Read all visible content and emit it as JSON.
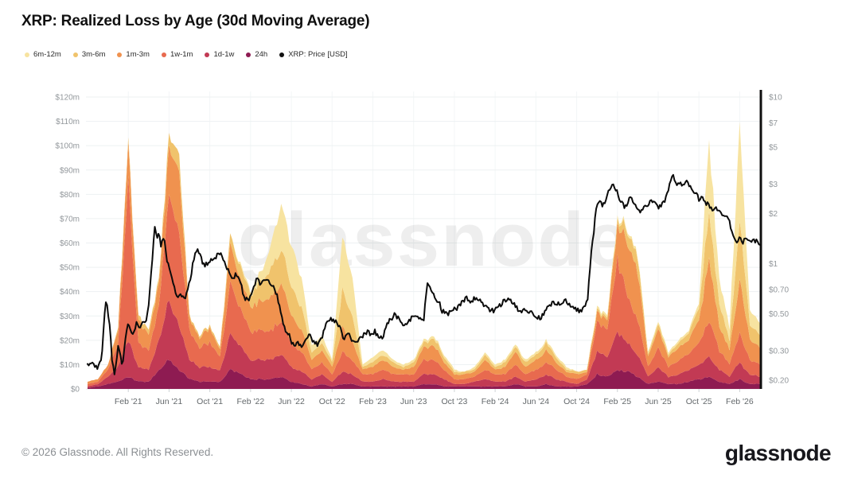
{
  "header": {
    "title": "XRP: Realized Loss by Age (30d Moving Average)"
  },
  "legend": {
    "items": [
      {
        "label": "6m-12m",
        "color": "#f7e3a0"
      },
      {
        "label": "3m-6m",
        "color": "#f0c36c"
      },
      {
        "label": "1m-3m",
        "color": "#f0924f"
      },
      {
        "label": "1w-1m",
        "color": "#e86a4f"
      },
      {
        "label": "1d-1w",
        "color": "#c23a54"
      },
      {
        "label": "24h",
        "color": "#8e1b52"
      },
      {
        "label": "XRP: Price [USD]",
        "color": "#111111"
      }
    ]
  },
  "watermark": {
    "text": "glassnode"
  },
  "footer": {
    "copyright": "© 2026 Glassnode. All Rights Reserved.",
    "brand": "glassnode"
  },
  "chart_data": {
    "type": "area",
    "subtype": "stacked-area-with-log-price-line",
    "title": "XRP: Realized Loss by Age (30d Moving Average)",
    "x_start": "2020-10",
    "x_step_months": 1,
    "x_ticks": [
      {
        "i": 4,
        "label": "Feb '21"
      },
      {
        "i": 8,
        "label": "Jun '21"
      },
      {
        "i": 12,
        "label": "Oct '21"
      },
      {
        "i": 16,
        "label": "Feb '22"
      },
      {
        "i": 20,
        "label": "Jun '22"
      },
      {
        "i": 24,
        "label": "Oct '22"
      },
      {
        "i": 28,
        "label": "Feb '23"
      },
      {
        "i": 32,
        "label": "Jun '23"
      },
      {
        "i": 36,
        "label": "Oct '23"
      },
      {
        "i": 40,
        "label": "Feb '24"
      },
      {
        "i": 44,
        "label": "Jun '24"
      },
      {
        "i": 48,
        "label": "Oct '24"
      },
      {
        "i": 52,
        "label": "Feb '25"
      },
      {
        "i": 56,
        "label": "Jun '25"
      },
      {
        "i": 60,
        "label": "Oct '25"
      },
      {
        "i": 64,
        "label": "Feb '26"
      }
    ],
    "left_axis": {
      "unit": "USD millions",
      "range": [
        0,
        120
      ],
      "ticks": [
        {
          "v": 0,
          "label": "$0"
        },
        {
          "v": 10,
          "label": "$10m"
        },
        {
          "v": 20,
          "label": "$20m"
        },
        {
          "v": 30,
          "label": "$30m"
        },
        {
          "v": 40,
          "label": "$40m"
        },
        {
          "v": 50,
          "label": "$50m"
        },
        {
          "v": 60,
          "label": "$60m"
        },
        {
          "v": 70,
          "label": "$70m"
        },
        {
          "v": 80,
          "label": "$80m"
        },
        {
          "v": 90,
          "label": "$90m"
        },
        {
          "v": 100,
          "label": "$100m"
        },
        {
          "v": 110,
          "label": "$110m"
        },
        {
          "v": 120,
          "label": "$120m"
        }
      ]
    },
    "right_axis": {
      "unit": "USD",
      "scale": "log",
      "range": [
        0.2,
        10
      ],
      "ticks": [
        {
          "v": 10,
          "label": "$10"
        },
        {
          "v": 7,
          "label": "$7"
        },
        {
          "v": 5,
          "label": "$5"
        },
        {
          "v": 3,
          "label": "$3"
        },
        {
          "v": 2,
          "label": "$2"
        },
        {
          "v": 1,
          "label": "$1"
        },
        {
          "v": 0.7,
          "label": "$0.70"
        },
        {
          "v": 0.5,
          "label": "$0.50"
        },
        {
          "v": 0.3,
          "label": "$0.30"
        },
        {
          "v": 0.2,
          "label": "$0.20"
        }
      ]
    },
    "stack_order": "bottom-to-top",
    "series": [
      {
        "name": "24h",
        "color": "#8e1b52",
        "values": [
          0.5,
          1,
          2,
          3,
          5,
          3,
          3,
          8,
          12,
          8,
          4,
          3,
          3,
          3,
          8,
          6,
          4,
          4,
          4,
          5,
          3,
          2,
          1,
          2,
          1,
          2,
          2,
          1,
          1,
          1,
          1,
          1,
          1,
          2,
          2,
          1,
          1,
          1,
          1,
          1,
          1,
          1,
          2,
          1,
          1,
          2,
          1,
          1,
          1,
          2,
          6,
          5,
          8,
          7,
          5,
          2,
          3,
          2,
          2,
          3,
          4,
          5,
          3,
          2,
          4,
          2,
          2
        ]
      },
      {
        "name": "1d-1w",
        "color": "#c23a54",
        "values": [
          0.5,
          1,
          3,
          6,
          15,
          6,
          5,
          12,
          25,
          18,
          8,
          6,
          6,
          5,
          14,
          12,
          8,
          8,
          8,
          9,
          6,
          5,
          3,
          4,
          2,
          5,
          4,
          2,
          2,
          3,
          2,
          2,
          2,
          4,
          4,
          3,
          1,
          1,
          2,
          3,
          2,
          2,
          3,
          2,
          3,
          4,
          3,
          2,
          1,
          2,
          9,
          8,
          15,
          12,
          9,
          3,
          6,
          3,
          4,
          5,
          6,
          8,
          5,
          3,
          7,
          4,
          3
        ]
      },
      {
        "name": "1w-1m",
        "color": "#e86a4f",
        "values": [
          1,
          1,
          3,
          9,
          65,
          10,
          8,
          14,
          45,
          38,
          12,
          8,
          10,
          6,
          20,
          16,
          12,
          12,
          12,
          14,
          10,
          8,
          4,
          5,
          3,
          8,
          6,
          3,
          3,
          4,
          3,
          3,
          3,
          6,
          6,
          4,
          2,
          2,
          2,
          4,
          3,
          3,
          5,
          3,
          4,
          5,
          4,
          2,
          2,
          2,
          12,
          11,
          30,
          20,
          14,
          4,
          8,
          4,
          6,
          7,
          9,
          15,
          8,
          5,
          12,
          6,
          5
        ]
      },
      {
        "name": "1m-3m",
        "color": "#f0924f",
        "values": [
          1,
          1,
          2,
          6,
          15,
          9,
          7,
          9,
          20,
          24,
          5,
          4,
          6,
          3,
          16,
          12,
          10,
          12,
          14,
          16,
          12,
          9,
          4,
          5,
          3,
          10,
          8,
          2,
          3,
          4,
          3,
          2,
          3,
          5,
          6,
          3,
          2,
          2,
          2,
          4,
          2,
          3,
          5,
          3,
          4,
          5,
          3,
          2,
          2,
          1,
          4,
          4,
          14,
          22,
          20,
          4,
          8,
          4,
          5,
          6,
          9,
          25,
          10,
          6,
          22,
          8,
          7
        ]
      },
      {
        "name": "3m-6m",
        "color": "#f0c36c",
        "values": [
          0,
          0,
          0,
          1,
          2,
          2,
          2,
          2,
          5,
          7,
          1,
          1,
          1,
          1,
          4,
          5,
          5,
          8,
          12,
          14,
          12,
          9,
          3,
          3,
          2,
          15,
          10,
          1,
          2,
          2,
          2,
          1,
          2,
          2,
          3,
          2,
          1,
          1,
          1,
          2,
          1,
          2,
          2,
          2,
          2,
          3,
          2,
          1,
          1,
          1,
          1,
          1,
          2,
          5,
          6,
          1,
          2,
          1,
          2,
          3,
          5,
          20,
          9,
          4,
          25,
          6,
          5
        ]
      },
      {
        "name": "6m-12m",
        "color": "#f7e3a0",
        "values": [
          0,
          0,
          0,
          0,
          0,
          0,
          0,
          0,
          0,
          0,
          0,
          0,
          0,
          0,
          0,
          1,
          1,
          4,
          10,
          18,
          17,
          12,
          3,
          3,
          1,
          22,
          15,
          1,
          2,
          2,
          1,
          1,
          1,
          1,
          1,
          1,
          1,
          0,
          1,
          1,
          1,
          1,
          1,
          1,
          1,
          1,
          1,
          1,
          0,
          0,
          1,
          1,
          1,
          1,
          1,
          1,
          1,
          1,
          1,
          1,
          2,
          30,
          10,
          5,
          40,
          6,
          5
        ]
      }
    ],
    "price_line": {
      "name": "XRP: Price [USD]",
      "color": "#0b0b0b",
      "points": [
        [
          0,
          0.245
        ],
        [
          0.5,
          0.25
        ],
        [
          1,
          0.24
        ],
        [
          1.4,
          0.27
        ],
        [
          1.8,
          0.6
        ],
        [
          2,
          0.52
        ],
        [
          2.4,
          0.27
        ],
        [
          2.7,
          0.21
        ],
        [
          3,
          0.33
        ],
        [
          3.4,
          0.24
        ],
        [
          3.7,
          0.35
        ],
        [
          4,
          0.46
        ],
        [
          4.2,
          0.4
        ],
        [
          4.5,
          0.37
        ],
        [
          4.8,
          0.44
        ],
        [
          5.1,
          0.4
        ],
        [
          5.4,
          0.45
        ],
        [
          5.7,
          0.44
        ],
        [
          6,
          0.56
        ],
        [
          6.3,
          0.95
        ],
        [
          6.6,
          1.62
        ],
        [
          6.8,
          1.4
        ],
        [
          7,
          1.58
        ],
        [
          7.2,
          1.3
        ],
        [
          7.5,
          1.42
        ],
        [
          7.8,
          1.05
        ],
        [
          8,
          0.92
        ],
        [
          8.3,
          0.8
        ],
        [
          8.6,
          0.7
        ],
        [
          8.9,
          0.62
        ],
        [
          9.2,
          0.66
        ],
        [
          9.5,
          0.6
        ],
        [
          9.8,
          0.7
        ],
        [
          10.1,
          0.8
        ],
        [
          10.4,
          1.05
        ],
        [
          10.7,
          1.22
        ],
        [
          11,
          1.12
        ],
        [
          11.4,
          0.98
        ],
        [
          11.8,
          1.02
        ],
        [
          12.2,
          1.08
        ],
        [
          12.6,
          1.1
        ],
        [
          13,
          1.18
        ],
        [
          13.4,
          1.02
        ],
        [
          13.8,
          0.92
        ],
        [
          14.2,
          0.82
        ],
        [
          14.6,
          0.86
        ],
        [
          15,
          0.76
        ],
        [
          15.4,
          0.63
        ],
        [
          15.8,
          0.6
        ],
        [
          16.2,
          0.7
        ],
        [
          16.6,
          0.8
        ],
        [
          17,
          0.76
        ],
        [
          17.4,
          0.82
        ],
        [
          17.8,
          0.77
        ],
        [
          18.2,
          0.73
        ],
        [
          18.6,
          0.64
        ],
        [
          19,
          0.5
        ],
        [
          19.4,
          0.4
        ],
        [
          19.8,
          0.37
        ],
        [
          20.2,
          0.32
        ],
        [
          20.6,
          0.34
        ],
        [
          21,
          0.32
        ],
        [
          21.4,
          0.36
        ],
        [
          21.8,
          0.37
        ],
        [
          22.2,
          0.34
        ],
        [
          22.6,
          0.33
        ],
        [
          23,
          0.35
        ],
        [
          23.4,
          0.44
        ],
        [
          23.7,
          0.47
        ],
        [
          24,
          0.45
        ],
        [
          24.4,
          0.46
        ],
        [
          24.8,
          0.41
        ],
        [
          25.1,
          0.34
        ],
        [
          25.5,
          0.38
        ],
        [
          25.8,
          0.36
        ],
        [
          26.2,
          0.34
        ],
        [
          26.6,
          0.35
        ],
        [
          27,
          0.37
        ],
        [
          27.4,
          0.39
        ],
        [
          27.8,
          0.38
        ],
        [
          28.2,
          0.39
        ],
        [
          28.6,
          0.37
        ],
        [
          29,
          0.36
        ],
        [
          29.4,
          0.44
        ],
        [
          29.8,
          0.47
        ],
        [
          30.2,
          0.5
        ],
        [
          30.6,
          0.46
        ],
        [
          31,
          0.43
        ],
        [
          31.4,
          0.45
        ],
        [
          31.8,
          0.47
        ],
        [
          32.2,
          0.49
        ],
        [
          32.6,
          0.46
        ],
        [
          33,
          0.47
        ],
        [
          33.4,
          0.78
        ],
        [
          33.7,
          0.7
        ],
        [
          34,
          0.63
        ],
        [
          34.4,
          0.6
        ],
        [
          34.8,
          0.52
        ],
        [
          35.2,
          0.5
        ],
        [
          35.6,
          0.51
        ],
        [
          36,
          0.53
        ],
        [
          36.4,
          0.55
        ],
        [
          36.8,
          0.6
        ],
        [
          37.2,
          0.62
        ],
        [
          37.6,
          0.6
        ],
        [
          38,
          0.62
        ],
        [
          38.4,
          0.61
        ],
        [
          38.8,
          0.57
        ],
        [
          39.2,
          0.55
        ],
        [
          39.6,
          0.52
        ],
        [
          40,
          0.53
        ],
        [
          40.4,
          0.55
        ],
        [
          40.8,
          0.6
        ],
        [
          41.2,
          0.62
        ],
        [
          41.6,
          0.6
        ],
        [
          42,
          0.55
        ],
        [
          42.4,
          0.52
        ],
        [
          42.8,
          0.53
        ],
        [
          43.2,
          0.52
        ],
        [
          43.6,
          0.5
        ],
        [
          44,
          0.48
        ],
        [
          44.4,
          0.47
        ],
        [
          44.8,
          0.5
        ],
        [
          45.2,
          0.55
        ],
        [
          45.6,
          0.58
        ],
        [
          46,
          0.56
        ],
        [
          46.4,
          0.58
        ],
        [
          46.8,
          0.6
        ],
        [
          47.2,
          0.58
        ],
        [
          47.6,
          0.56
        ],
        [
          48,
          0.53
        ],
        [
          48.4,
          0.52
        ],
        [
          48.8,
          0.55
        ],
        [
          49.1,
          0.62
        ],
        [
          49.4,
          1.1
        ],
        [
          49.7,
          1.6
        ],
        [
          50,
          2.3
        ],
        [
          50.3,
          2.35
        ],
        [
          50.6,
          2.25
        ],
        [
          50.9,
          2.45
        ],
        [
          51.2,
          2.75
        ],
        [
          51.5,
          3.05
        ],
        [
          51.8,
          2.85
        ],
        [
          52.1,
          2.55
        ],
        [
          52.4,
          2.35
        ],
        [
          52.7,
          2.15
        ],
        [
          53,
          2.35
        ],
        [
          53.3,
          2.45
        ],
        [
          53.6,
          2.3
        ],
        [
          54,
          2.1
        ],
        [
          54.4,
          2.05
        ],
        [
          54.8,
          2.2
        ],
        [
          55.2,
          2.35
        ],
        [
          55.6,
          2.3
        ],
        [
          56,
          2.2
        ],
        [
          56.4,
          2.3
        ],
        [
          56.8,
          2.5
        ],
        [
          57.1,
          2.9
        ],
        [
          57.4,
          3.4
        ],
        [
          57.7,
          3.1
        ],
        [
          58,
          3.0
        ],
        [
          58.4,
          2.95
        ],
        [
          58.8,
          3.1
        ],
        [
          59.2,
          2.9
        ],
        [
          59.6,
          2.65
        ],
        [
          60,
          2.45
        ],
        [
          60.3,
          2.55
        ],
        [
          60.6,
          2.35
        ],
        [
          61,
          2.25
        ],
        [
          61.4,
          2.1
        ],
        [
          61.8,
          2.15
        ],
        [
          62.2,
          2.0
        ],
        [
          62.6,
          1.95
        ],
        [
          63,
          1.8
        ],
        [
          63.3,
          1.5
        ],
        [
          63.6,
          1.35
        ],
        [
          64,
          1.45
        ],
        [
          64.3,
          1.35
        ],
        [
          64.6,
          1.45
        ],
        [
          65,
          1.35
        ],
        [
          65.5,
          1.38
        ],
        [
          66,
          1.32
        ]
      ]
    }
  },
  "style_colors": {
    "grid_horizontal": "#edf1f2",
    "grid_vertical": "#f3f6f7",
    "axis_label": "#92979b",
    "x_label": "#63686b",
    "right_axis_bar": "#101010",
    "tick_mark": "#cfd4d6",
    "watermark": "#1a1a1a"
  }
}
